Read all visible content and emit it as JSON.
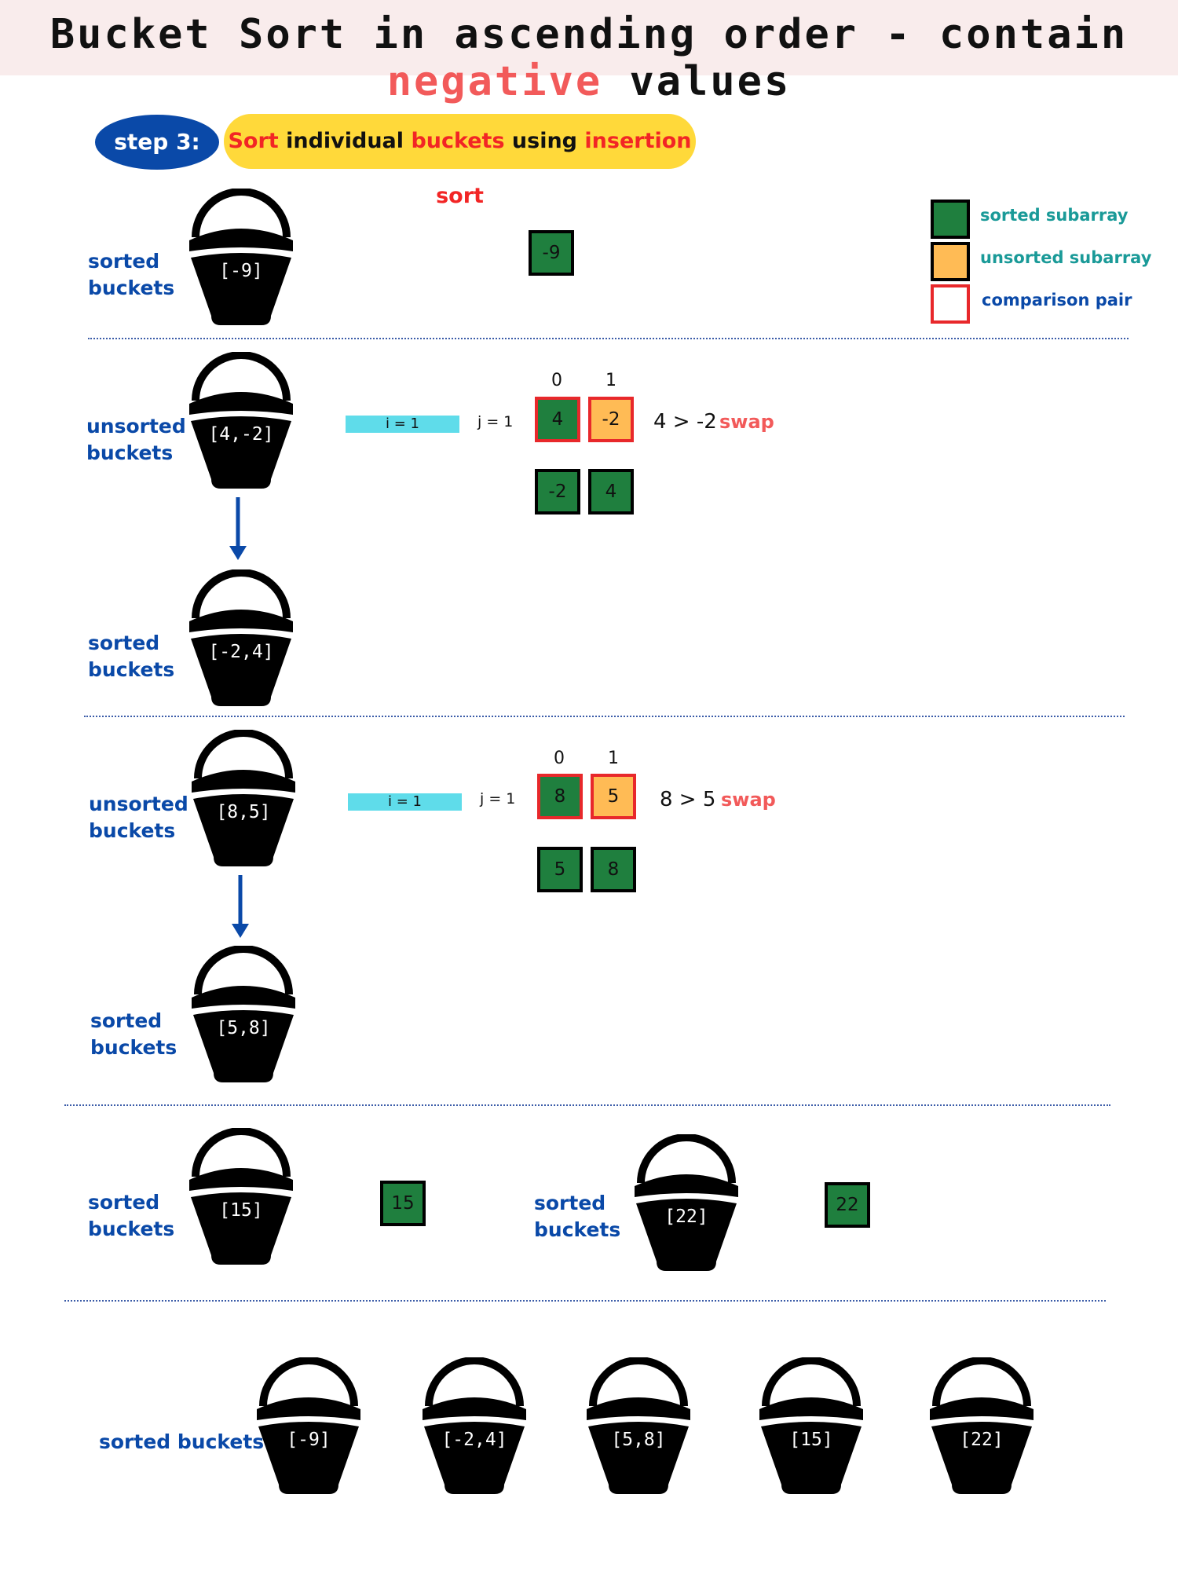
{
  "title": {
    "before": "Bucket Sort in ascending order - contain ",
    "highlight": "negative",
    "after": " values"
  },
  "step": {
    "label": "step 3:",
    "banner": {
      "w1": "Sort",
      "w2": " individual ",
      "w3": "buckets",
      "w4": " using ",
      "w5": "insertion sort"
    }
  },
  "legend": {
    "sorted": "sorted subarray",
    "unsorted": "unsorted subarray",
    "comparison": "comparison pair"
  },
  "labels": {
    "sorted": "sorted",
    "unsorted": "unsorted",
    "buckets": "buckets",
    "sorted_buckets": "sorted buckets"
  },
  "section1": {
    "bucket": "[-9]",
    "box": "-9"
  },
  "section2": {
    "bucket_unsorted": "[4,-2]",
    "bucket_sorted": "[-2,4]",
    "i_label": "i = 1",
    "j_label": "j = 1",
    "idx0": "0",
    "idx1": "1",
    "pair": [
      "4",
      "-2"
    ],
    "result": [
      "-2",
      "4"
    ],
    "comparison": "4 > -2",
    "action": "swap"
  },
  "section3": {
    "bucket_unsorted": "[8,5]",
    "bucket_sorted": "[5,8]",
    "i_label": "i = 1",
    "j_label": "j = 1",
    "idx0": "0",
    "idx1": "1",
    "pair": [
      "8",
      "5"
    ],
    "result": [
      "5",
      "8"
    ],
    "comparison": "8 > 5",
    "action": "swap"
  },
  "section4": {
    "bucket_a": "[15]",
    "box_a": "15",
    "bucket_b": "[22]",
    "box_b": "22"
  },
  "final": {
    "buckets": [
      "[-9]",
      "[-2,4]",
      "[5,8]",
      "[15]",
      "[22]"
    ]
  },
  "colors": {
    "green": "#1f7f3e",
    "orange": "#ffbb55",
    "red": "#e8282b",
    "blue": "#0a49a8",
    "yellow": "#ffd93a",
    "cyan": "#5fdcea"
  }
}
